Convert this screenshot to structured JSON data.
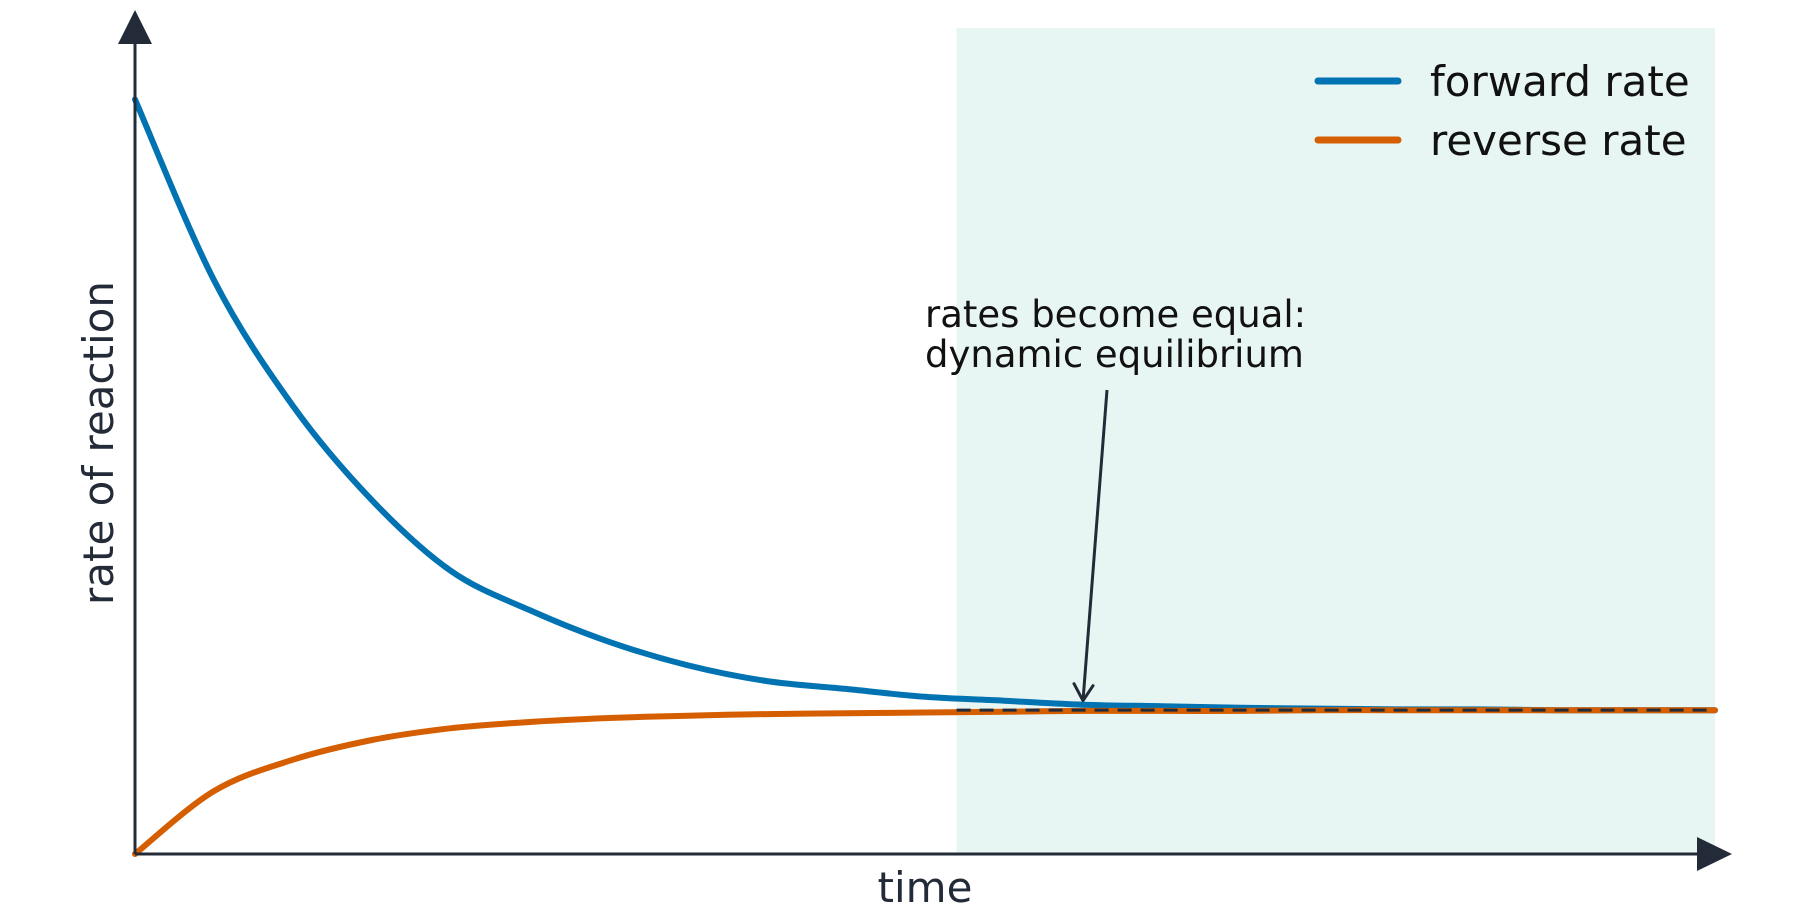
{
  "chart_data": {
    "type": "line",
    "xlabel": "time",
    "ylabel": "rate of reaction",
    "xlim": [
      0,
      10
    ],
    "ylim": [
      0,
      1
    ],
    "axis_ticks": false,
    "grid": false,
    "legend": {
      "position": "top-right",
      "entries": [
        "forward rate",
        "reverse rate"
      ]
    },
    "series": [
      {
        "name": "forward rate",
        "color": "#0173b2",
        "x": [
          0,
          0.5,
          1,
          1.5,
          2,
          2.5,
          3,
          3.5,
          4,
          4.5,
          5,
          5.5,
          6,
          6.5,
          7,
          7.5,
          8,
          8.5,
          9,
          9.5,
          10
        ],
        "y": [
          0.96,
          0.73,
          0.57,
          0.45,
          0.36,
          0.31,
          0.27,
          0.24,
          0.22,
          0.21,
          0.2,
          0.195,
          0.19,
          0.188,
          0.186,
          0.185,
          0.184,
          0.184,
          0.183,
          0.183,
          0.183
        ]
      },
      {
        "name": "reverse rate",
        "color": "#d55e00",
        "x": [
          0,
          0.5,
          1,
          1.5,
          2,
          2.5,
          3,
          3.5,
          4,
          4.5,
          5,
          5.5,
          6,
          6.5,
          7,
          7.5,
          8,
          8.5,
          9,
          9.5,
          10
        ],
        "y": [
          0.0,
          0.08,
          0.12,
          0.145,
          0.16,
          0.168,
          0.173,
          0.176,
          0.178,
          0.179,
          0.18,
          0.181,
          0.182,
          0.182,
          0.182,
          0.183,
          0.183,
          0.183,
          0.183,
          0.183,
          0.183
        ]
      }
    ],
    "equilibrium": {
      "x_start": 5.2,
      "x_end": 10,
      "y": 0.183,
      "shade_color": "#e8f6f3",
      "line_color": "#232b38"
    },
    "annotation": {
      "lines": [
        "rates become equal:",
        "dynamic equilibrium"
      ],
      "target_x": 6.0,
      "target_y": 0.19
    },
    "colors": {
      "axis": "#232b38"
    }
  }
}
